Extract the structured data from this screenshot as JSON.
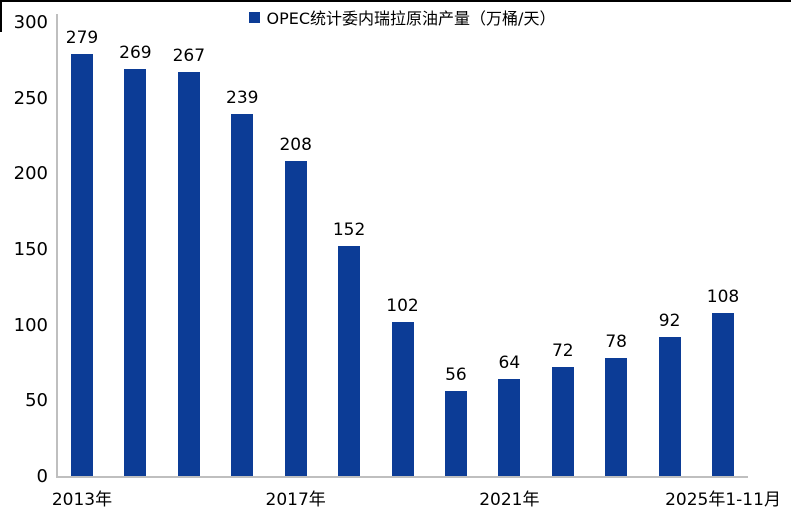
{
  "legend": {
    "label": "OPEC统计委内瑞拉原油产量（万桶/天）",
    "marker_color": "#0c3c96"
  },
  "chart_data": {
    "type": "bar",
    "categories": [
      "2013年",
      "",
      "",
      "",
      "2017年",
      "",
      "",
      "",
      "2021年",
      "",
      "",
      "",
      "2025年1-11月"
    ],
    "values": [
      279,
      269,
      267,
      239,
      208,
      152,
      102,
      56,
      64,
      72,
      78,
      92,
      108
    ],
    "data_labels": [
      "279",
      "269",
      "267",
      "239",
      "208",
      "152",
      "102",
      "56",
      "64",
      "72",
      "78",
      "92",
      "108"
    ],
    "title": "",
    "xlabel": "",
    "ylabel": "",
    "y_ticks": [
      0,
      50,
      100,
      150,
      200,
      250,
      300
    ],
    "ylim": [
      0,
      300
    ],
    "bar_color": "#0c3c96",
    "axis_color": "#bfbfbf",
    "label_color": "#000000",
    "grid": "off",
    "legend_position": "top-center",
    "legend_entries": [
      "OPEC统计委内瑞拉原油产量（万桶/天）"
    ]
  }
}
